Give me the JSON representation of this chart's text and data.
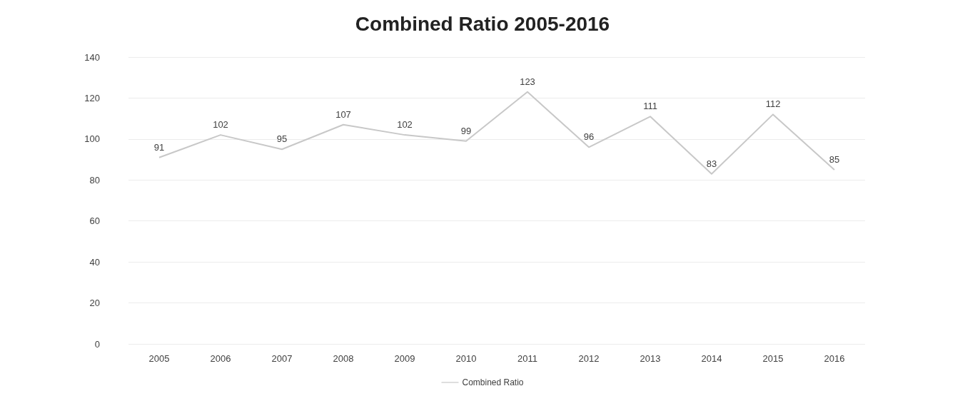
{
  "chart_data": {
    "type": "line",
    "title": "Combined Ratio 2005-2016",
    "categories": [
      "2005",
      "2006",
      "2007",
      "2008",
      "2009",
      "2010",
      "2011",
      "2012",
      "2013",
      "2014",
      "2015",
      "2016"
    ],
    "series": [
      {
        "name": "Combined Ratio",
        "color": "#c8c8c8",
        "values": [
          91,
          102,
          95,
          107,
          102,
          99,
          123,
          96,
          111,
          83,
          112,
          85
        ]
      }
    ],
    "ylim": [
      0,
      140
    ],
    "yticks": [
      0,
      20,
      40,
      60,
      80,
      100,
      120,
      140
    ],
    "grid": "y",
    "legend": "bottom",
    "data_labels": true,
    "marker": "none"
  }
}
